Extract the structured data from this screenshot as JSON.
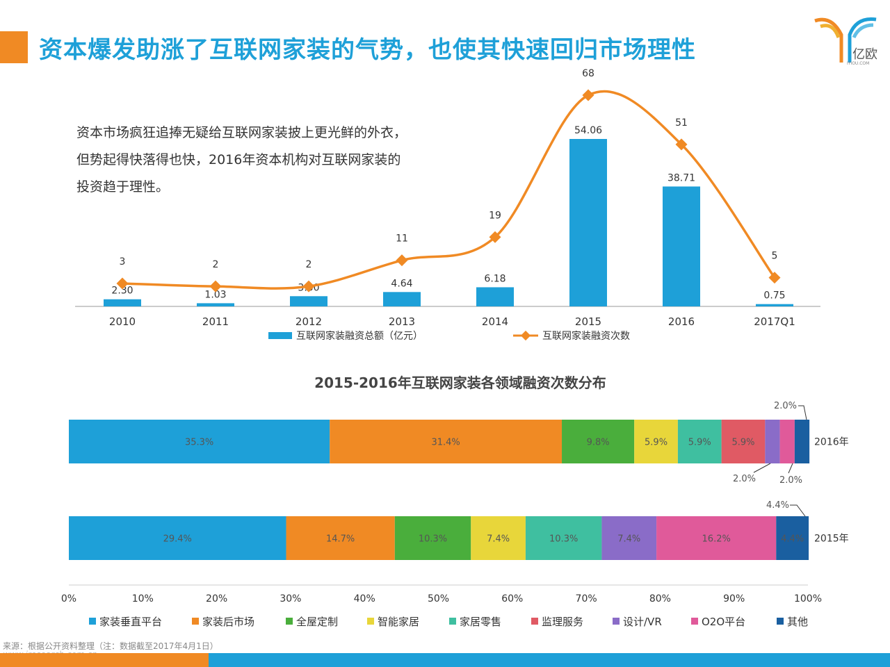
{
  "header": {
    "title": "资本爆发助涨了互联网家装的气势，也使其快速回归市场理性",
    "logo_text": "亿欧",
    "logo_subtext": "IYIOU.COM"
  },
  "description": {
    "lines": [
      "资本市场疯狂追捧无疑给互联网家装披上更光鲜的外衣，",
      "但势起得快落得也快，2016年资本机构对互联网家装的",
      "投资趋于理性。"
    ]
  },
  "colors": {
    "title_blue": "#1ea0d8",
    "accent_orange": "#f08a24",
    "bar_blue": "#1ea0d8",
    "line_orange": "#f08a24"
  },
  "chart_data": [
    {
      "type": "bar",
      "categories": [
        "2010",
        "2011",
        "2012",
        "2013",
        "2014",
        "2015",
        "2016",
        "2017Q1"
      ],
      "series": [
        {
          "name": "互联网家装融资总额（亿元）",
          "type": "bar",
          "values": [
            2.3,
            1.03,
            3.3,
            4.64,
            6.18,
            54.06,
            38.71,
            0.75
          ],
          "labels": [
            "2.30",
            "1.03",
            "3.30",
            "4.64",
            "6.18",
            "54.06",
            "38.71",
            "0.75"
          ]
        },
        {
          "name": "互联网家装融资次数",
          "type": "line",
          "values": [
            3,
            2,
            2,
            11,
            19,
            68,
            51,
            5
          ],
          "labels": [
            "3",
            "2",
            "2",
            "11",
            "19",
            "68",
            "51",
            "5"
          ]
        }
      ],
      "legend_position": "bottom"
    },
    {
      "type": "bar",
      "orientation": "horizontal",
      "stacked": true,
      "title": "2015-2016年互联网家装各领域融资次数分布",
      "rows": [
        "2016年",
        "2015年"
      ],
      "series": [
        {
          "name": "家装垂直平台",
          "color": "#1ea0d8",
          "values": [
            35.3,
            29.4
          ]
        },
        {
          "name": "家装后市场",
          "color": "#f08a24",
          "values": [
            31.4,
            14.7
          ]
        },
        {
          "name": "全屋定制",
          "color": "#4aae3c",
          "values": [
            9.8,
            10.3
          ]
        },
        {
          "name": "智能家居",
          "color": "#e8d63a",
          "values": [
            5.9,
            7.4
          ]
        },
        {
          "name": "家居零售",
          "color": "#3fbfa0",
          "values": [
            5.9,
            10.3
          ]
        },
        {
          "name": "监理服务",
          "color": "#e05a64",
          "values": [
            5.9,
            0
          ]
        },
        {
          "name": "设计/VR",
          "color": "#8a6cc8",
          "values": [
            2.0,
            7.4
          ]
        },
        {
          "name": "O2O平台",
          "color": "#e05a9a",
          "values": [
            2.0,
            16.2
          ]
        },
        {
          "name": "其他",
          "color": "#1a5fa0",
          "values": [
            2.0,
            4.4
          ]
        }
      ],
      "segment_labels": [
        [
          "35.3%",
          "31.4%",
          "9.8%",
          "5.9%",
          "5.9%",
          "5.9%",
          "2.0%",
          "2.0%",
          "2.0%"
        ],
        [
          "29.4%",
          "14.7%",
          "10.3%",
          "7.4%",
          "10.3%",
          "",
          "7.4%",
          "16.2%",
          "4.4%"
        ]
      ],
      "x_ticks": [
        "0%",
        "10%",
        "20%",
        "30%",
        "40%",
        "50%",
        "60%",
        "70%",
        "80%",
        "90%",
        "100%"
      ],
      "xlim": [
        0,
        100
      ],
      "legend_position": "bottom"
    }
  ],
  "footer": {
    "source": "来源：根据公开资料整理（注：数据截至2017年4月1日）",
    "watermark": "www.iresearch.com.cn"
  }
}
